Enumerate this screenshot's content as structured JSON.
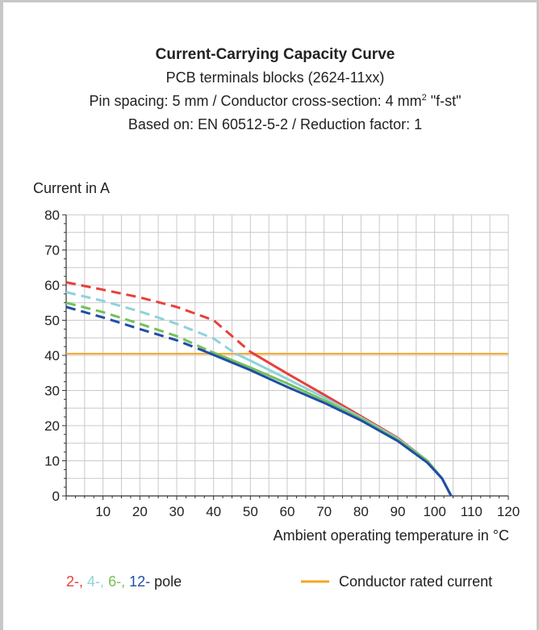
{
  "chart_data": {
    "type": "line",
    "title": "Current-Carrying Capacity Curve",
    "subtitles": [
      "PCB terminals blocks (2624-11xx)",
      "Pin spacing: 5 mm / Conductor cross-section: 4 mm",
      "Based on: EN 60512-5-2 / Reduction factor: 1"
    ],
    "subtitle_superscript": "2",
    "subtitle_suffix": " \"f-st\"",
    "ylabel": "Current in A",
    "xlabel": "Ambient operating temperature in °C",
    "xlim": [
      0,
      120
    ],
    "ylim": [
      0,
      80
    ],
    "x_ticks": [
      "10",
      "20",
      "30",
      "40",
      "50",
      "60",
      "70",
      "80",
      "90",
      "100",
      "110",
      "120"
    ],
    "y_ticks": [
      "0",
      "10",
      "20",
      "30",
      "40",
      "50",
      "60",
      "70",
      "80"
    ],
    "grid": true,
    "rated_current": {
      "value": 40.5,
      "color": "#f5a623"
    },
    "series": [
      {
        "name": "2-",
        "color": "#e8403a",
        "dashed": [
          [
            0,
            60.8
          ],
          [
            10,
            58.7
          ],
          [
            20,
            56.5
          ],
          [
            30,
            53.8
          ],
          [
            40,
            50.0
          ],
          [
            50,
            41.0
          ]
        ],
        "solid": [
          [
            50,
            41.0
          ],
          [
            60,
            34.8
          ],
          [
            70,
            28.8
          ],
          [
            80,
            22.7
          ],
          [
            90,
            16.5
          ],
          [
            98,
            10.0
          ],
          [
            102,
            5.0
          ],
          [
            104.5,
            0
          ]
        ]
      },
      {
        "name": "4-",
        "color": "#8dd3dc",
        "dashed": [
          [
            0,
            58.0
          ],
          [
            10,
            55.5
          ],
          [
            20,
            52.5
          ],
          [
            30,
            49.0
          ],
          [
            40,
            44.8
          ],
          [
            46,
            40.5
          ]
        ],
        "solid": [
          [
            46,
            40.5
          ],
          [
            50,
            38.5
          ],
          [
            60,
            33.3
          ],
          [
            70,
            28.0
          ],
          [
            80,
            22.3
          ],
          [
            90,
            16.3
          ],
          [
            98,
            10.0
          ],
          [
            102,
            5.0
          ],
          [
            104.5,
            0
          ]
        ]
      },
      {
        "name": "6-",
        "color": "#74c05a",
        "dashed": [
          [
            0,
            55.0
          ],
          [
            10,
            52.3
          ],
          [
            20,
            49.0
          ],
          [
            30,
            45.5
          ],
          [
            39,
            41.2
          ]
        ],
        "solid": [
          [
            39,
            41.2
          ],
          [
            50,
            36.5
          ],
          [
            60,
            32.0
          ],
          [
            70,
            27.2
          ],
          [
            80,
            22.0
          ],
          [
            90,
            16.0
          ],
          [
            98,
            10.0
          ],
          [
            102,
            5.0
          ],
          [
            104.5,
            0
          ]
        ]
      },
      {
        "name": "12-",
        "color": "#1f4ea8",
        "dashed": [
          [
            0,
            53.8
          ],
          [
            10,
            50.8
          ],
          [
            20,
            47.5
          ],
          [
            30,
            44.3
          ],
          [
            38,
            41.0
          ]
        ],
        "solid": [
          [
            38,
            41.0
          ],
          [
            50,
            35.8
          ],
          [
            60,
            31.0
          ],
          [
            70,
            26.5
          ],
          [
            80,
            21.5
          ],
          [
            90,
            15.6
          ],
          [
            98,
            9.5
          ],
          [
            102,
            5.0
          ],
          [
            104.5,
            0
          ]
        ]
      }
    ]
  },
  "legend": {
    "pole_items": [
      {
        "label": "2-,",
        "color": "#e8403a"
      },
      {
        "label": "4-,",
        "color": "#8dd3dc"
      },
      {
        "label": "6-,",
        "color": "#74c05a"
      },
      {
        "label": "12-",
        "color": "#1f4ea8"
      }
    ],
    "pole_suffix": "pole",
    "rated_label": "Conductor rated current",
    "rated_color": "#f5a623"
  }
}
